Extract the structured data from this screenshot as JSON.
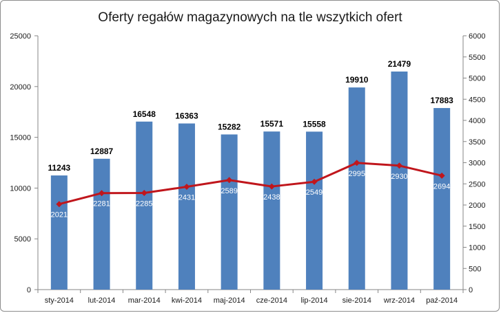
{
  "chart_data": {
    "type": "bar",
    "title": "Oferty regałów magazynowych na tle wszytkich ofert",
    "categories": [
      "sty-2014",
      "lut-2014",
      "mar-2014",
      "kwi-2014",
      "maj-2014",
      "cze-2014",
      "lip-2014",
      "sie-2014",
      "wrz-2014",
      "paź-2014"
    ],
    "series": [
      {
        "type": "bar",
        "axis": "left",
        "color": "#4f81bd",
        "values": [
          11243,
          12887,
          16548,
          16363,
          15282,
          15571,
          15558,
          19910,
          21479,
          17883
        ]
      },
      {
        "type": "line",
        "axis": "right",
        "color": "#c0161c",
        "marker": "diamond",
        "values": [
          2021,
          2281,
          2285,
          2431,
          2589,
          2438,
          2549,
          2995,
          2930,
          2694
        ]
      }
    ],
    "y_left": {
      "min": 0,
      "max": 25000,
      "ticks": [
        0,
        5000,
        10000,
        15000,
        20000,
        25000
      ]
    },
    "y_right": {
      "min": 0,
      "max": 6000,
      "ticks": [
        0,
        500,
        1000,
        1500,
        2000,
        2500,
        3000,
        3500,
        4000,
        4500,
        5000,
        5500,
        6000
      ]
    },
    "data_labels": true,
    "legend": "none",
    "grid": false
  }
}
